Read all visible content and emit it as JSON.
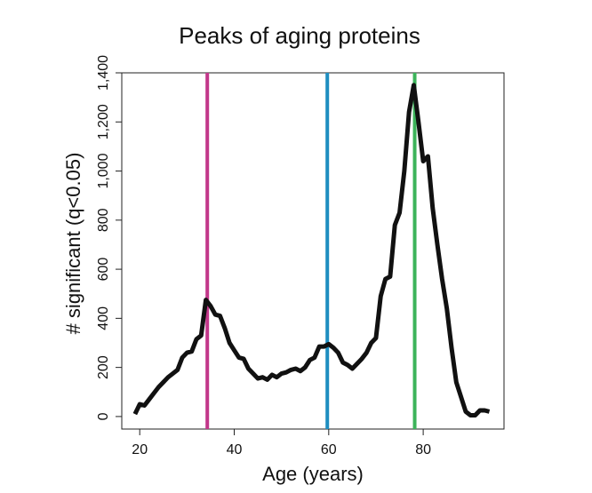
{
  "chart_data": {
    "type": "line",
    "title": "Peaks of aging proteins",
    "x_label": "Age (years)",
    "y_label": "# significant (q<0.05)",
    "x": [
      19,
      20,
      21,
      22,
      23,
      24,
      25,
      26,
      27,
      28,
      29,
      30,
      31,
      32,
      33,
      34,
      35,
      36,
      37,
      38,
      39,
      40,
      41,
      42,
      43,
      44,
      45,
      46,
      47,
      48,
      49,
      50,
      51,
      52,
      53,
      54,
      55,
      56,
      57,
      58,
      59,
      60,
      61,
      62,
      63,
      64,
      65,
      66,
      67,
      68,
      69,
      70,
      71,
      72,
      73,
      74,
      75,
      76,
      77,
      78,
      79,
      80,
      81,
      82,
      83,
      84,
      85,
      86,
      87,
      88,
      89,
      90,
      91,
      92,
      93,
      94
    ],
    "series": [
      {
        "color": "#111111",
        "values": [
          10,
          50,
          45,
          70,
          95,
          120,
          140,
          160,
          175,
          190,
          240,
          260,
          265,
          315,
          330,
          475,
          450,
          415,
          410,
          360,
          300,
          270,
          240,
          235,
          195,
          175,
          155,
          160,
          150,
          170,
          160,
          175,
          180,
          190,
          195,
          185,
          200,
          230,
          240,
          285,
          285,
          295,
          280,
          260,
          220,
          210,
          195,
          215,
          235,
          260,
          300,
          320,
          490,
          560,
          570,
          780,
          830,
          1000,
          1240,
          1350,
          1200,
          1040,
          1060,
          850,
          700,
          560,
          440,
          280,
          140,
          80,
          20,
          5,
          5,
          25,
          25,
          20
        ]
      }
    ],
    "vlines": [
      {
        "value": 34.3,
        "color": "#c2378a"
      },
      {
        "value": 59.7,
        "color": "#1f8ec0"
      },
      {
        "value": 78.2,
        "color": "#3cb45a"
      }
    ],
    "xlim": [
      16.2,
      97.1
    ],
    "ylim": [
      -51,
      1400
    ],
    "xticks": [
      20,
      40,
      60,
      80
    ],
    "yticks": [
      0,
      200,
      400,
      600,
      800,
      {
        "value": 1000,
        "label": "1,000"
      },
      {
        "value": 1200,
        "label": "1,200"
      },
      {
        "value": 1400,
        "label": "1,400"
      }
    ]
  }
}
